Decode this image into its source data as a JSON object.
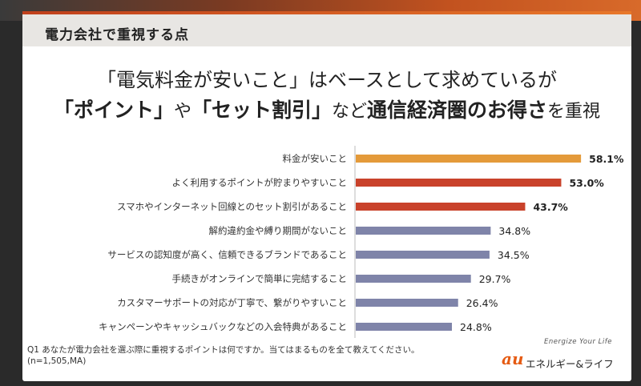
{
  "header": {
    "title": "電力会社で重視する点"
  },
  "headline": {
    "line1": "「電気料金が安いこと」はベースとして求めているが",
    "line2_parts": [
      {
        "text": "「ポイント」",
        "style": "bold"
      },
      {
        "text": "や",
        "style": "normal"
      },
      {
        "text": "「セット割引」",
        "style": "bold"
      },
      {
        "text": "など",
        "style": "normal"
      },
      {
        "text": "通信経済圏のお得さ",
        "style": "bold"
      },
      {
        "text": "を重視",
        "style": "normal"
      }
    ]
  },
  "chart_data": {
    "type": "bar",
    "orientation": "horizontal",
    "unit": "%",
    "categories": [
      "料金が安いこと",
      "よく利用するポイントが貯まりやすいこと",
      "スマホやインターネット回線とのセット割引があること",
      "解約違約金や縛り期間がないこと",
      "サービスの認知度が高く、信頼できるブランドであること",
      "手続きがオンラインで簡単に完結すること",
      "カスタマーサポートの対応が丁寧で、繋がりやすいこと",
      "キャンペーンやキャッシュバックなどの入会特典があること"
    ],
    "values": [
      58.1,
      53.0,
      43.7,
      34.8,
      34.5,
      29.7,
      26.4,
      24.8
    ],
    "value_labels": [
      "58.1%",
      "53.0%",
      "43.7%",
      "34.8%",
      "34.5%",
      "29.7%",
      "26.4%",
      "24.8%"
    ],
    "bar_colors": [
      "#e49a3a",
      "#c9422b",
      "#c9422b",
      "#7f84a9",
      "#7f84a9",
      "#7f84a9",
      "#7f84a9",
      "#7f84a9"
    ],
    "highlight_bold": [
      true,
      true,
      true,
      false,
      false,
      false,
      false,
      false
    ],
    "xlim": [
      0,
      62
    ]
  },
  "footnote": {
    "line1": "Q1 あなたが電力会社を選ぶ際に重視するポイントは何ですか。当てはまるものを全て教えてください。",
    "line2": "(n=1,505,MA)"
  },
  "logo": {
    "tagline": "Energize Your Life",
    "mark": "au",
    "name": "エネルギー&ライフ"
  }
}
